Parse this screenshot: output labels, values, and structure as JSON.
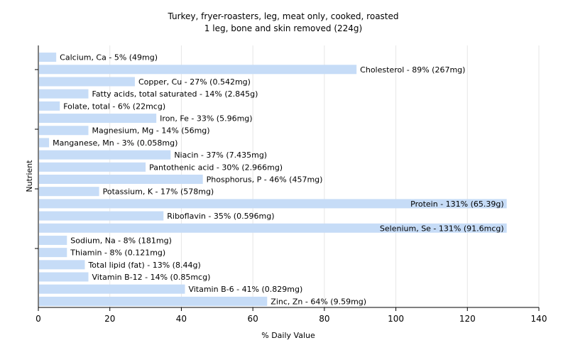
{
  "chart_data": {
    "type": "bar",
    "orientation": "horizontal",
    "title": "Turkey, fryer-roasters, leg, meat only, cooked, roasted",
    "subtitle": "1 leg, bone and skin removed (224g)",
    "xlabel": "% Daily Value",
    "ylabel": "Nutrient",
    "xlim": [
      0,
      140
    ],
    "xticks": [
      0,
      20,
      40,
      60,
      80,
      100,
      120,
      140
    ],
    "grid": true,
    "bar_color": "#c6dcf7",
    "categories": [
      "Calcium, Ca",
      "Cholesterol",
      "Copper, Cu",
      "Fatty acids, total saturated",
      "Folate, total",
      "Iron, Fe",
      "Magnesium, Mg",
      "Manganese, Mn",
      "Niacin",
      "Pantothenic acid",
      "Phosphorus, P",
      "Potassium, K",
      "Protein",
      "Riboflavin",
      "Selenium, Se",
      "Sodium, Na",
      "Thiamin",
      "Total lipid (fat)",
      "Vitamin B-12",
      "Vitamin B-6",
      "Zinc, Zn"
    ],
    "values": [
      5,
      89,
      27,
      14,
      6,
      33,
      14,
      3,
      37,
      30,
      46,
      17,
      131,
      35,
      131,
      8,
      8,
      13,
      14,
      41,
      64
    ],
    "labels": [
      "Calcium, Ca - 5% (49mg)",
      "Cholesterol - 89% (267mg)",
      "Copper, Cu - 27% (0.542mg)",
      "Fatty acids, total saturated - 14% (2.845g)",
      "Folate, total - 6% (22mcg)",
      "Iron, Fe - 33% (5.96mg)",
      "Magnesium, Mg - 14% (56mg)",
      "Manganese, Mn - 3% (0.058mg)",
      "Niacin - 37% (7.435mg)",
      "Pantothenic acid - 30% (2.966mg)",
      "Phosphorus, P - 46% (457mg)",
      "Potassium, K - 17% (578mg)",
      "Protein - 131% (65.39g)",
      "Riboflavin - 35% (0.596mg)",
      "Selenium, Se - 131% (91.6mcg)",
      "Sodium, Na - 8% (181mg)",
      "Thiamin - 8% (0.121mg)",
      "Total lipid (fat) - 13% (8.44g)",
      "Vitamin B-12 - 14% (0.85mcg)",
      "Vitamin B-6 - 41% (0.829mg)",
      "Zinc, Zn - 64% (9.59mg)"
    ]
  }
}
